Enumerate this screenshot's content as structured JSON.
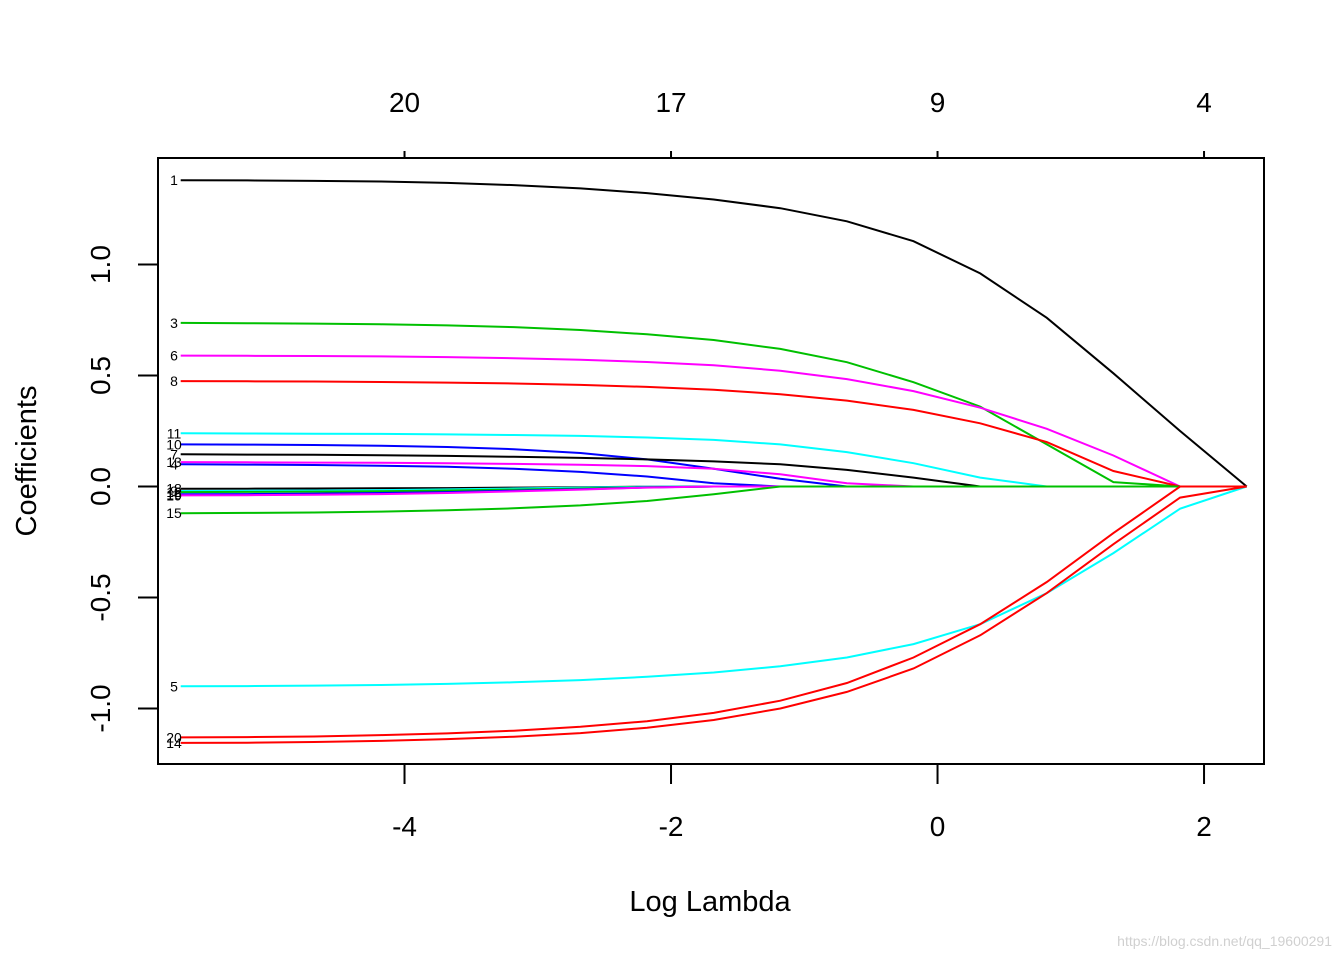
{
  "chart_data": {
    "type": "line",
    "xlabel": "Log Lambda",
    "ylabel": "Coefficients",
    "xlim": [
      -5.85,
      2.45
    ],
    "ylim": [
      -1.25,
      1.48
    ],
    "x_ticks": [
      "-4",
      "-2",
      "0",
      "2"
    ],
    "x_tick_values": [
      -4,
      -2,
      0,
      2
    ],
    "y_ticks": [
      "-1.0",
      "-0.5",
      "0.0",
      "0.5",
      "1.0"
    ],
    "y_tick_values": [
      -1.0,
      -0.5,
      0.0,
      0.5,
      1.0
    ],
    "top_ticks": [
      "20",
      "17",
      "9",
      "4"
    ],
    "top_tick_values": [
      -4,
      -2,
      0,
      2
    ],
    "grid": false,
    "legend": "none",
    "x": [
      -5.68,
      -5.18,
      -4.68,
      -4.18,
      -3.68,
      -3.18,
      -2.68,
      -2.18,
      -1.68,
      -1.18,
      -0.68,
      -0.18,
      0.32,
      0.82,
      1.32,
      1.82,
      2.32
    ],
    "series": [
      {
        "name": "1",
        "color": "#000000",
        "values": [
          1.38,
          1.379,
          1.377,
          1.374,
          1.368,
          1.358,
          1.343,
          1.322,
          1.293,
          1.254,
          1.195,
          1.105,
          0.96,
          0.76,
          0.51,
          0.25,
          0.0
        ]
      },
      {
        "name": "3",
        "color": "#00C000",
        "values": [
          0.737,
          0.736,
          0.734,
          0.731,
          0.726,
          0.718,
          0.705,
          0.686,
          0.66,
          0.62,
          0.56,
          0.47,
          0.36,
          0.19,
          0.02,
          0.0,
          0.0
        ]
      },
      {
        "name": "6",
        "color": "#FF00FF",
        "values": [
          0.59,
          0.589,
          0.588,
          0.586,
          0.583,
          0.578,
          0.571,
          0.561,
          0.546,
          0.522,
          0.484,
          0.43,
          0.355,
          0.26,
          0.14,
          0.0,
          0.0
        ]
      },
      {
        "name": "8",
        "color": "#FF0000",
        "values": [
          0.475,
          0.474,
          0.473,
          0.471,
          0.468,
          0.464,
          0.458,
          0.449,
          0.436,
          0.416,
          0.387,
          0.345,
          0.285,
          0.2,
          0.07,
          0.0,
          0.0
        ]
      },
      {
        "name": "11",
        "color": "#00FFFF",
        "values": [
          0.24,
          0.239,
          0.238,
          0.237,
          0.235,
          0.232,
          0.228,
          0.221,
          0.21,
          0.19,
          0.155,
          0.105,
          0.04,
          0.0,
          0.0,
          0.0,
          0.0
        ]
      },
      {
        "name": "10",
        "color": "#0000FF",
        "values": [
          0.19,
          0.189,
          0.187,
          0.184,
          0.178,
          0.168,
          0.151,
          0.122,
          0.08,
          0.035,
          0.0,
          0.0,
          0.0,
          0.0,
          0.0,
          0.0,
          0.0
        ]
      },
      {
        "name": "7",
        "color": "#000000",
        "values": [
          0.145,
          0.144,
          0.143,
          0.141,
          0.138,
          0.134,
          0.129,
          0.122,
          0.113,
          0.1,
          0.075,
          0.04,
          0.0,
          0.0,
          0.0,
          0.0,
          0.0
        ]
      },
      {
        "name": "13",
        "color": "#FF00FF",
        "values": [
          0.11,
          0.109,
          0.108,
          0.107,
          0.105,
          0.102,
          0.098,
          0.092,
          0.08,
          0.055,
          0.015,
          0.0,
          0.0,
          0.0,
          0.0,
          0.0,
          0.0
        ]
      },
      {
        "name": "4",
        "color": "#0000FF",
        "values": [
          0.1,
          0.099,
          0.097,
          0.094,
          0.089,
          0.08,
          0.066,
          0.045,
          0.015,
          0.0,
          0.0,
          0.0,
          0.0,
          0.0,
          0.0,
          0.0,
          0.0
        ]
      },
      {
        "name": "18",
        "color": "#000000",
        "values": [
          -0.01,
          -0.01,
          -0.009,
          -0.008,
          -0.007,
          -0.005,
          -0.003,
          -0.001,
          0.0,
          0.0,
          0.0,
          0.0,
          0.0,
          0.0,
          0.0,
          0.0,
          0.0
        ]
      },
      {
        "name": "9",
        "color": "#00FFFF",
        "values": [
          -0.02,
          -0.019,
          -0.018,
          -0.016,
          -0.013,
          -0.009,
          -0.005,
          -0.001,
          0.0,
          0.0,
          0.0,
          0.0,
          0.0,
          0.0,
          0.0,
          0.0,
          0.0
        ]
      },
      {
        "name": "12",
        "color": "#00C000",
        "values": [
          -0.025,
          -0.024,
          -0.023,
          -0.021,
          -0.018,
          -0.014,
          -0.009,
          -0.003,
          0.0,
          0.0,
          0.0,
          0.0,
          0.0,
          0.0,
          0.0,
          0.0,
          0.0
        ]
      },
      {
        "name": "16",
        "color": "#0000FF",
        "values": [
          -0.035,
          -0.034,
          -0.032,
          -0.029,
          -0.025,
          -0.019,
          -0.012,
          -0.004,
          0.0,
          0.0,
          0.0,
          0.0,
          0.0,
          0.0,
          0.0,
          0.0,
          0.0
        ]
      },
      {
        "name": "19",
        "color": "#FF00FF",
        "values": [
          -0.04,
          -0.039,
          -0.037,
          -0.034,
          -0.029,
          -0.022,
          -0.014,
          -0.005,
          0.0,
          0.0,
          0.0,
          0.0,
          0.0,
          0.0,
          0.0,
          0.0,
          0.0
        ]
      },
      {
        "name": "15",
        "color": "#00C000",
        "values": [
          -0.12,
          -0.119,
          -0.117,
          -0.113,
          -0.107,
          -0.098,
          -0.085,
          -0.065,
          -0.035,
          0.0,
          0.0,
          0.0,
          0.0,
          0.0,
          0.0,
          0.0,
          0.0
        ]
      },
      {
        "name": "5",
        "color": "#00FFFF",
        "values": [
          -0.9,
          -0.899,
          -0.897,
          -0.894,
          -0.889,
          -0.882,
          -0.872,
          -0.857,
          -0.838,
          -0.81,
          -0.77,
          -0.71,
          -0.62,
          -0.48,
          -0.3,
          -0.1,
          0.0
        ]
      },
      {
        "name": "20",
        "color": "#FF0000",
        "values": [
          -1.13,
          -1.129,
          -1.126,
          -1.12,
          -1.112,
          -1.1,
          -1.082,
          -1.057,
          -1.02,
          -0.965,
          -0.885,
          -0.77,
          -0.62,
          -0.43,
          -0.21,
          0.0,
          0.0
        ]
      },
      {
        "name": "14",
        "color": "#FF0000",
        "values": [
          -1.155,
          -1.154,
          -1.151,
          -1.146,
          -1.138,
          -1.127,
          -1.111,
          -1.087,
          -1.052,
          -1.0,
          -0.925,
          -0.82,
          -0.67,
          -0.48,
          -0.26,
          -0.05,
          0.0
        ]
      }
    ]
  },
  "watermark": "https://blog.csdn.net/qq_19600291"
}
